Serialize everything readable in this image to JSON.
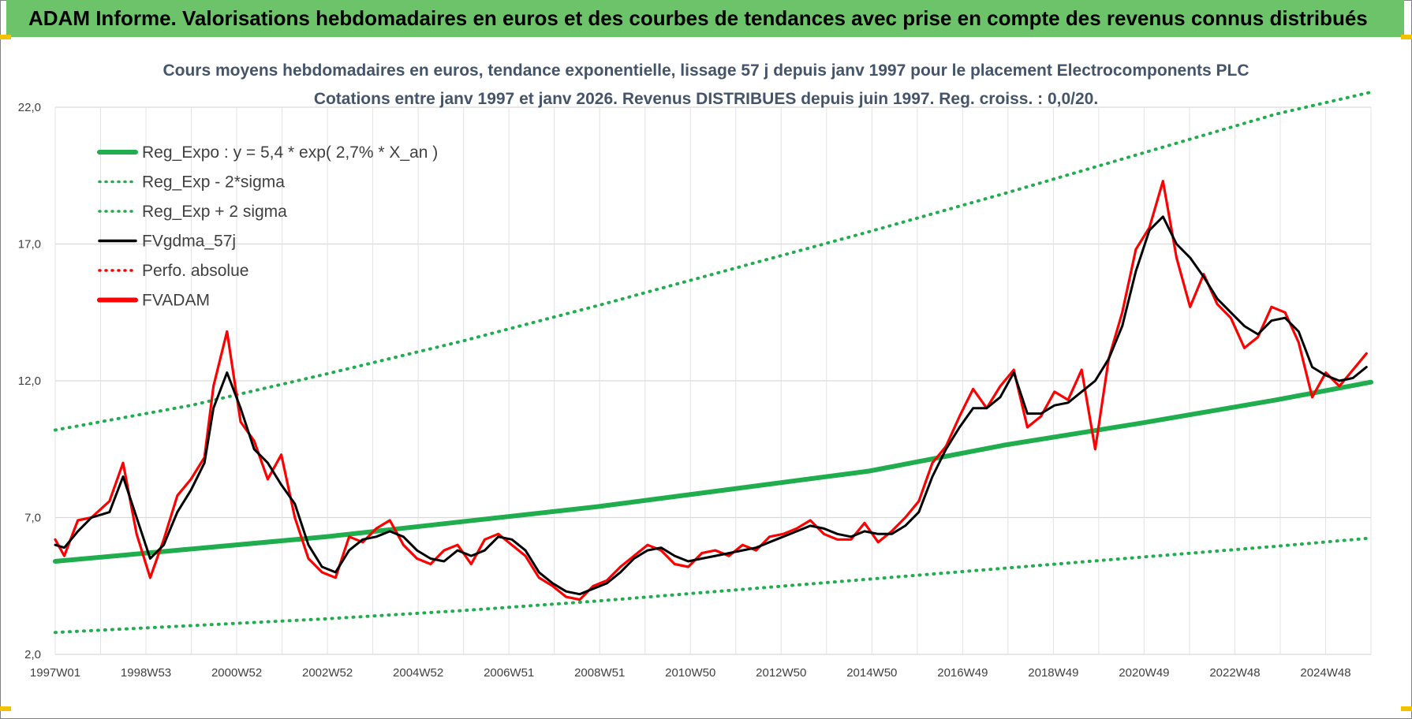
{
  "header": {
    "title": "ADAM Informe. Valorisations hebdomadaires en euros et des courbes de tendances avec prise en compte des revenus connus distribués"
  },
  "colors": {
    "header_bg": "#6cc36a",
    "reg": "#1fad4e",
    "adam": "#ff0000",
    "gdma": "#000000",
    "corner": "#f2c100"
  },
  "chart_data": {
    "type": "line",
    "title": "Cours moyens hebdomadaires en euros, tendance exponentielle, lissage 57 j depuis janv 1997 pour le placement Electrocomponents PLC",
    "subtitle": "Cotations entre janv 1997 et janv 2026. Revenus DISTRIBUES depuis juin 1997. Reg. croiss. : 0,0/20.",
    "xlabel": "",
    "ylabel": "",
    "x_range": [
      1997.0,
      2026.1
    ],
    "ylim": [
      2.0,
      22.0
    ],
    "yticks": [
      "2,0",
      "7,0",
      "12,0",
      "17,0",
      "22,0"
    ],
    "x_tick_labels": [
      "1997W01",
      "1998W53",
      "2000W52",
      "2002W52",
      "2004W52",
      "2006W51",
      "2008W51",
      "2010W50",
      "2012W50",
      "2014W50",
      "2016W49",
      "2018W49",
      "2020W49",
      "2022W48",
      "2024W48"
    ],
    "grid": true,
    "legend_position": "top-left",
    "legend": [
      {
        "label": "Reg_Expo : y = 5,4 * exp( 2,7% *  X_an )",
        "style": "solid-thick",
        "color": "#1fad4e"
      },
      {
        "label": "Reg_Exp - 2*sigma",
        "style": "dotted",
        "color": "#1fad4e"
      },
      {
        "label": "Reg_Exp + 2 sigma",
        "style": "dotted",
        "color": "#1fad4e"
      },
      {
        "label": "FVgdma_57j",
        "style": "solid",
        "color": "#000000"
      },
      {
        "label": "Perfo. absolue",
        "style": "dotted",
        "color": "#ff0000"
      },
      {
        "label": "FVADAM",
        "style": "solid-thick",
        "color": "#ff0000"
      }
    ],
    "series": [
      {
        "name": "Reg_Expo : y = 5,4 * exp( 2,7% *  X_an )",
        "x": [
          1997.0,
          2000.0,
          2003.0,
          2006.0,
          2009.0,
          2012.0,
          2015.0,
          2018.0,
          2021.0,
          2024.0,
          2026.1
        ],
        "values": [
          5.4,
          5.85,
          6.3,
          6.85,
          7.4,
          8.05,
          8.7,
          9.65,
          10.45,
          11.3,
          11.95
        ]
      },
      {
        "name": "Reg_Exp - 2*sigma",
        "x": [
          1997.0,
          2000.0,
          2003.0,
          2006.0,
          2009.0,
          2012.0,
          2015.0,
          2018.0,
          2021.0,
          2024.0,
          2026.1
        ],
        "values": [
          2.8,
          3.05,
          3.3,
          3.6,
          3.95,
          4.35,
          4.75,
          5.15,
          5.55,
          5.95,
          6.25
        ]
      },
      {
        "name": "Reg_Exp + 2 sigma",
        "x": [
          1997.0,
          2000.0,
          2003.0,
          2006.0,
          2009.0,
          2012.0,
          2015.0,
          2018.0,
          2021.0,
          2024.0,
          2026.1
        ],
        "values": [
          10.2,
          11.1,
          12.25,
          13.45,
          14.75,
          16.1,
          17.45,
          18.85,
          20.3,
          21.75,
          22.55
        ]
      },
      {
        "name": "FVgdma_57j",
        "x": [
          1997.0,
          1997.2,
          1997.5,
          1997.8,
          1998.2,
          1998.5,
          1998.8,
          1999.1,
          1999.4,
          1999.7,
          2000.0,
          2000.3,
          2000.5,
          2000.8,
          2001.1,
          2001.4,
          2001.7,
          2002.0,
          2002.3,
          2002.6,
          2002.9,
          2003.2,
          2003.5,
          2003.8,
          2004.1,
          2004.4,
          2004.7,
          2005.0,
          2005.3,
          2005.6,
          2005.9,
          2006.2,
          2006.5,
          2006.8,
          2007.1,
          2007.4,
          2007.7,
          2008.0,
          2008.3,
          2008.6,
          2008.9,
          2009.2,
          2009.5,
          2009.8,
          2010.1,
          2010.4,
          2010.7,
          2011.0,
          2011.3,
          2011.6,
          2011.9,
          2012.2,
          2012.5,
          2012.8,
          2013.1,
          2013.4,
          2013.7,
          2014.0,
          2014.3,
          2014.6,
          2014.9,
          2015.2,
          2015.5,
          2015.8,
          2016.1,
          2016.4,
          2016.7,
          2017.0,
          2017.3,
          2017.6,
          2017.9,
          2018.2,
          2018.5,
          2018.8,
          2019.1,
          2019.4,
          2019.7,
          2020.0,
          2020.3,
          2020.6,
          2020.9,
          2021.2,
          2021.5,
          2021.8,
          2022.1,
          2022.4,
          2022.7,
          2023.0,
          2023.3,
          2023.6,
          2023.9,
          2024.2,
          2024.5,
          2024.8,
          2025.1,
          2025.4,
          2025.7,
          2026.0
        ],
        "values": [
          6.0,
          5.9,
          6.5,
          7.0,
          7.2,
          8.5,
          7.0,
          5.5,
          6.0,
          7.2,
          8.0,
          9.0,
          11.0,
          12.3,
          11.0,
          9.5,
          9.0,
          8.2,
          7.5,
          6.0,
          5.2,
          5.0,
          5.8,
          6.2,
          6.3,
          6.5,
          6.3,
          5.8,
          5.5,
          5.4,
          5.8,
          5.6,
          5.8,
          6.3,
          6.2,
          5.8,
          5.0,
          4.6,
          4.3,
          4.2,
          4.4,
          4.6,
          5.0,
          5.5,
          5.8,
          5.9,
          5.6,
          5.4,
          5.5,
          5.6,
          5.7,
          5.8,
          5.9,
          6.1,
          6.3,
          6.5,
          6.7,
          6.6,
          6.4,
          6.3,
          6.5,
          6.4,
          6.4,
          6.7,
          7.2,
          8.5,
          9.5,
          10.3,
          11.0,
          11.0,
          11.4,
          12.3,
          10.8,
          10.8,
          11.1,
          11.2,
          11.6,
          12.0,
          12.8,
          14.0,
          16.0,
          17.5,
          18.0,
          17.0,
          16.5,
          15.8,
          15.0,
          14.5,
          14.0,
          13.7,
          14.2,
          14.3,
          13.8,
          12.5,
          12.2,
          12.0,
          12.1,
          12.5
        ]
      },
      {
        "name": "FVADAM",
        "x": [
          1997.0,
          1997.2,
          1997.5,
          1997.8,
          1998.2,
          1998.5,
          1998.8,
          1999.1,
          1999.4,
          1999.7,
          2000.0,
          2000.3,
          2000.5,
          2000.8,
          2001.1,
          2001.4,
          2001.7,
          2002.0,
          2002.3,
          2002.6,
          2002.9,
          2003.2,
          2003.5,
          2003.8,
          2004.1,
          2004.4,
          2004.7,
          2005.0,
          2005.3,
          2005.6,
          2005.9,
          2006.2,
          2006.5,
          2006.8,
          2007.1,
          2007.4,
          2007.7,
          2008.0,
          2008.3,
          2008.6,
          2008.9,
          2009.2,
          2009.5,
          2009.8,
          2010.1,
          2010.4,
          2010.7,
          2011.0,
          2011.3,
          2011.6,
          2011.9,
          2012.2,
          2012.5,
          2012.8,
          2013.1,
          2013.4,
          2013.7,
          2014.0,
          2014.3,
          2014.6,
          2014.9,
          2015.2,
          2015.5,
          2015.8,
          2016.1,
          2016.4,
          2016.7,
          2017.0,
          2017.3,
          2017.6,
          2017.9,
          2018.2,
          2018.5,
          2018.8,
          2019.1,
          2019.4,
          2019.7,
          2020.0,
          2020.3,
          2020.6,
          2020.9,
          2021.2,
          2021.5,
          2021.8,
          2022.1,
          2022.4,
          2022.7,
          2023.0,
          2023.3,
          2023.6,
          2023.9,
          2024.2,
          2024.5,
          2024.8,
          2025.1,
          2025.4,
          2025.7,
          2026.0
        ],
        "values": [
          6.2,
          5.6,
          6.9,
          7.0,
          7.6,
          9.0,
          6.4,
          4.8,
          6.2,
          7.8,
          8.4,
          9.2,
          11.8,
          13.8,
          10.5,
          9.8,
          8.4,
          9.3,
          7.0,
          5.5,
          5.0,
          4.8,
          6.3,
          6.1,
          6.6,
          6.9,
          6.0,
          5.5,
          5.3,
          5.8,
          6.0,
          5.3,
          6.2,
          6.4,
          6.0,
          5.6,
          4.8,
          4.5,
          4.1,
          4.0,
          4.5,
          4.7,
          5.2,
          5.6,
          6.0,
          5.8,
          5.3,
          5.2,
          5.7,
          5.8,
          5.6,
          6.0,
          5.8,
          6.3,
          6.4,
          6.6,
          6.9,
          6.4,
          6.2,
          6.2,
          6.8,
          6.1,
          6.5,
          7.0,
          7.6,
          9.0,
          9.6,
          10.7,
          11.7,
          11.0,
          11.8,
          12.4,
          10.3,
          10.7,
          11.6,
          11.3,
          12.4,
          9.5,
          12.8,
          14.5,
          16.8,
          17.6,
          19.3,
          16.5,
          14.7,
          15.9,
          14.8,
          14.3,
          13.2,
          13.6,
          14.7,
          14.5,
          13.4,
          11.4,
          12.3,
          11.8,
          12.4,
          13.0
        ]
      }
    ]
  }
}
